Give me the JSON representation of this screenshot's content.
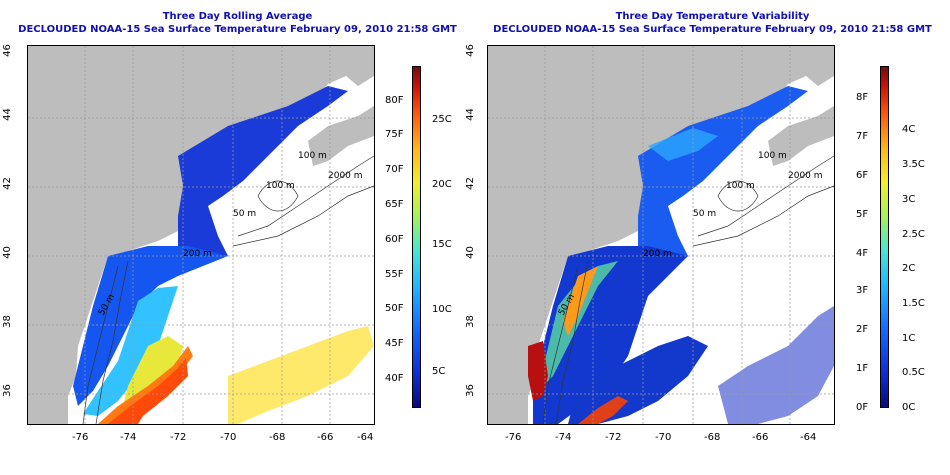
{
  "left_panel": {
    "title_line1": "Three Day Rolling Average",
    "title_line2": "DECLOUDED NOAA-15 Sea Surface Temperature February 09, 2010 21:58 GMT",
    "colorbar_f": [
      "40F",
      "45F",
      "50F",
      "55F",
      "60F",
      "65F",
      "70F",
      "75F",
      "80F"
    ],
    "colorbar_c": [
      "5C",
      "10C",
      "15C",
      "20C",
      "25C"
    ]
  },
  "right_panel": {
    "title_line1": "Three Day Temperature Variability",
    "title_line2": "DECLOUDED NOAA-15 Sea Surface Temperature February 09, 2010 21:58 GMT",
    "colorbar_f": [
      "0F",
      "1F",
      "2F",
      "3F",
      "4F",
      "5F",
      "6F",
      "7F",
      "8F"
    ],
    "colorbar_c": [
      "0C",
      "0.5C",
      "1C",
      "1.5C",
      "2C",
      "2.5C",
      "3C",
      "3.5C",
      "4C"
    ]
  },
  "axes": {
    "lon_ticks": [
      "-76",
      "-74",
      "-72",
      "-70",
      "-68",
      "-66",
      "-64"
    ],
    "lat_ticks": [
      "36",
      "38",
      "40",
      "42",
      "44",
      "46"
    ]
  },
  "contour_labels": [
    "100 m",
    "2000 m",
    "100 m",
    "50 m",
    "200 m",
    "50 m"
  ],
  "colors": {
    "title": "#1010b0",
    "land": "#bdbdbd",
    "grid": "#9a9a9a"
  }
}
